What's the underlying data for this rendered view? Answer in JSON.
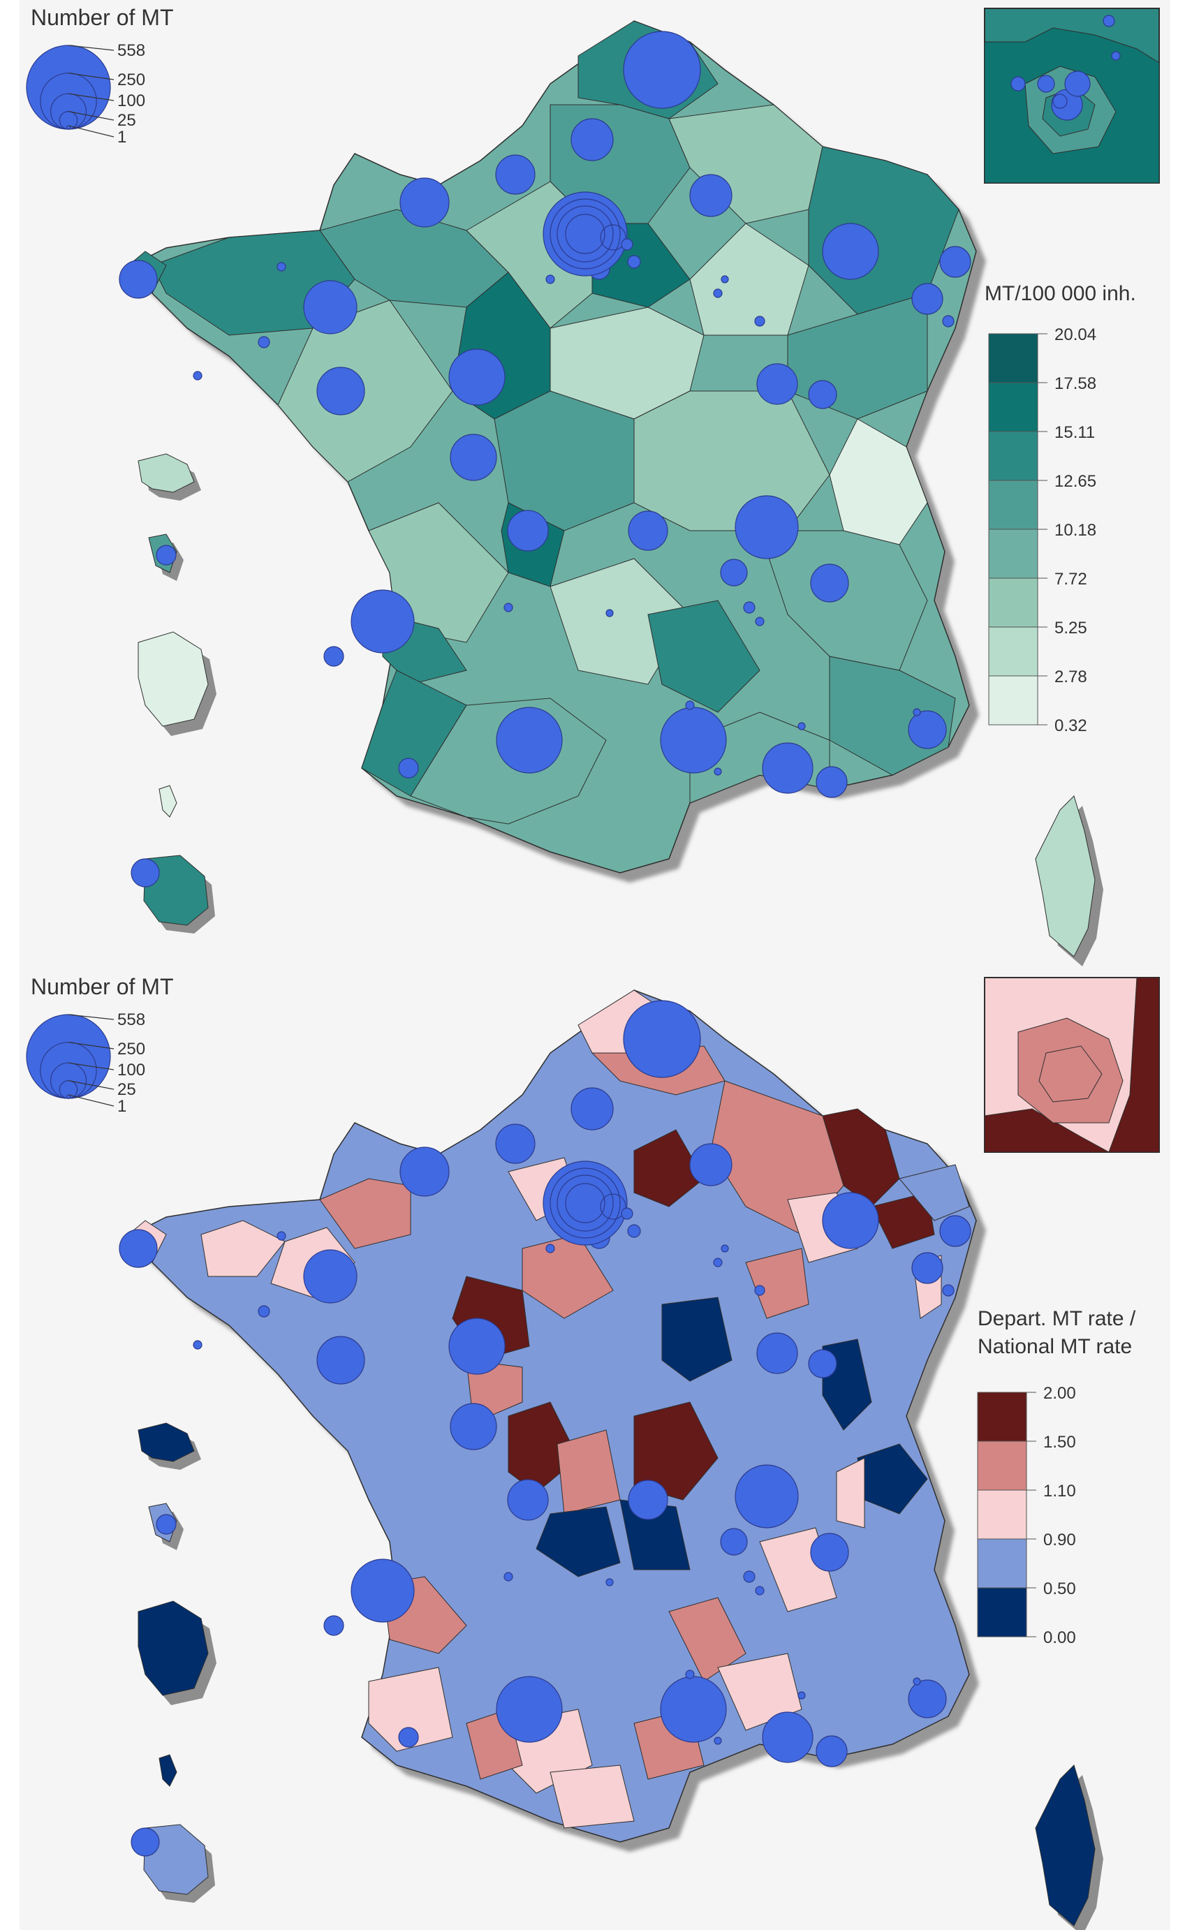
{
  "panels": [
    {
      "id": "rate",
      "bubble_legend": {
        "title": "Number of MT",
        "values": [
          558,
          250,
          100,
          25,
          1
        ]
      },
      "color_legend": {
        "title_lines": [
          "MT/100 000 inh."
        ],
        "breaks": [
          "20.04",
          "17.58",
          "15.11",
          "12.65",
          "10.18",
          "7.72",
          "5.25",
          "2.78",
          "0.32"
        ],
        "colors": [
          "#0c5e61",
          "#0f7571",
          "#2c8a84",
          "#4f9e95",
          "#6eb1a4",
          "#94c8b5",
          "#b7dccb",
          "#dff1e7"
        ]
      }
    },
    {
      "id": "ratio",
      "bubble_legend": {
        "title": "Number of MT",
        "values": [
          558,
          250,
          100,
          25,
          1
        ]
      },
      "color_legend": {
        "title_lines": [
          "Depart. MT rate /",
          "National MT rate"
        ],
        "breaks": [
          "2.00",
          "1.50",
          "1.10",
          "0.90",
          "0.50",
          "0.00"
        ],
        "colors": [
          "#631a19",
          "#d48684",
          "#f7d1d3",
          "#7f9ad8",
          "#012d6b"
        ]
      }
    }
  ],
  "map_colors": {
    "ocean": "#f5f5f5",
    "shadow": "#8d8d8d",
    "bubble_fill": "#4169e1",
    "bubble_stroke": "#2b3b8f",
    "border": "#2f2f2f"
  }
}
